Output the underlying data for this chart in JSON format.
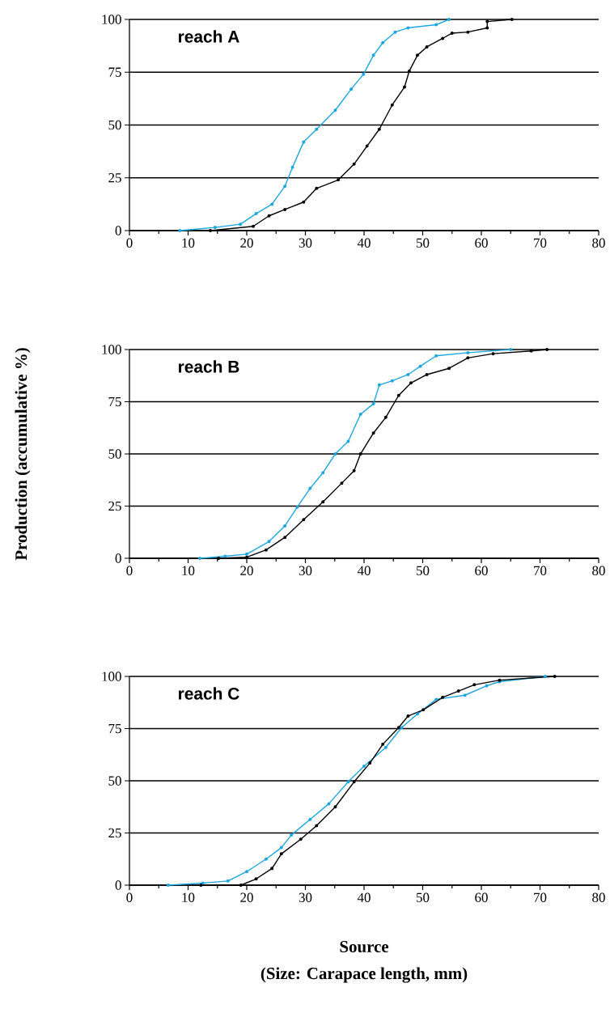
{
  "chart_data": [
    {
      "type": "line",
      "title": "reach A",
      "xlim": [
        0,
        80
      ],
      "ylim": [
        0,
        100
      ],
      "xticks": [
        0,
        10,
        20,
        30,
        40,
        50,
        60,
        70,
        80
      ],
      "yticks": [
        0,
        25,
        50,
        75,
        100
      ],
      "grid": "y",
      "marker": "circle",
      "series": [
        {
          "color": "#1ba6e0",
          "x": [
            8.6,
            14.6,
            18.9,
            21.6,
            24.3,
            26.5,
            27.8,
            29.7,
            31.9,
            35.1,
            37.8,
            39.9,
            41.6,
            43.2,
            45.3,
            47.5,
            52.3,
            54.5
          ],
          "values": [
            0,
            1.5,
            3,
            8,
            12.5,
            21,
            30,
            42,
            48,
            57,
            67,
            74,
            83,
            89,
            94,
            96,
            97.5,
            100
          ]
        },
        {
          "color": "#000000",
          "x": [
            13.8,
            21.1,
            23.8,
            26.5,
            29.7,
            31.9,
            35.6,
            38.3,
            40.5,
            42.6,
            44.8,
            46.9,
            47.7,
            49.1,
            50.7,
            53.4,
            55,
            57.7,
            61,
            61,
            65.2
          ],
          "values": [
            0,
            2,
            7,
            10,
            13.5,
            20,
            24,
            31.5,
            40,
            48,
            59.5,
            68,
            75.5,
            83,
            87,
            91,
            93.5,
            94,
            96,
            99,
            100
          ]
        }
      ]
    },
    {
      "type": "line",
      "title": "reach B",
      "ylabel": "Production (accumulative %)",
      "xlim": [
        0,
        80
      ],
      "ylim": [
        0,
        100
      ],
      "xticks": [
        0,
        10,
        20,
        30,
        40,
        50,
        60,
        70,
        80
      ],
      "yticks": [
        0,
        25,
        50,
        75,
        100
      ],
      "grid": "y",
      "marker": "circle",
      "series": [
        {
          "color": "#1ba6e0",
          "x": [
            12,
            16.3,
            20,
            23.8,
            26.5,
            28.6,
            30.8,
            33,
            35.1,
            37.3,
            39.4,
            41.6,
            42.6,
            44.8,
            47.5,
            49.6,
            52.3,
            57.7,
            65
          ],
          "values": [
            0,
            1,
            2,
            8,
            15.5,
            24.5,
            33.5,
            41,
            50,
            56,
            69,
            74,
            83,
            85,
            88,
            92,
            97,
            98.5,
            100
          ]
        },
        {
          "color": "#000000",
          "x": [
            15.2,
            20,
            23.3,
            26.5,
            29.7,
            33,
            36.2,
            38.3,
            39.4,
            41.6,
            43.7,
            45.9,
            48,
            50.7,
            54.5,
            57.7,
            62,
            68.5,
            71.2
          ],
          "values": [
            0,
            0.5,
            4,
            10,
            18.5,
            27,
            36,
            42,
            50,
            60,
            67.5,
            78,
            84,
            88,
            91,
            96,
            98,
            99.3,
            100
          ]
        }
      ]
    },
    {
      "type": "line",
      "title": "reach C",
      "xlabel": "Source",
      "annotations": [
        "(Size: Carapace length, mm)"
      ],
      "xlim": [
        0,
        80
      ],
      "ylim": [
        0,
        100
      ],
      "xticks": [
        0,
        10,
        20,
        30,
        40,
        50,
        60,
        70,
        80
      ],
      "yticks": [
        0,
        25,
        50,
        75,
        100
      ],
      "grid": "y",
      "marker": "circle",
      "series": [
        {
          "color": "#1ba6e0",
          "x": [
            6.6,
            12.5,
            16.8,
            20,
            23.3,
            25.9,
            27.6,
            30.8,
            34,
            37.3,
            40,
            43.7,
            46.4,
            49.1,
            52.3,
            57.2,
            60.9,
            63.1,
            70.9
          ],
          "values": [
            0,
            1,
            2,
            6.5,
            12.5,
            18,
            24,
            31.5,
            39,
            49.5,
            57,
            66,
            75.5,
            82,
            89,
            91,
            95.5,
            97.5,
            100
          ]
        },
        {
          "color": "#000000",
          "x": [
            12.2,
            19,
            21.6,
            24.3,
            25.9,
            29.2,
            31.9,
            35.1,
            38.3,
            41,
            43.2,
            45.9,
            47.5,
            50.1,
            53.4,
            56.1,
            58.8,
            63.1,
            72.5
          ],
          "values": [
            0,
            0,
            3,
            8,
            15,
            22,
            28.5,
            37.5,
            49.5,
            58.5,
            67.5,
            75.5,
            81,
            84,
            90,
            93,
            96,
            98.2,
            100
          ]
        }
      ]
    }
  ]
}
